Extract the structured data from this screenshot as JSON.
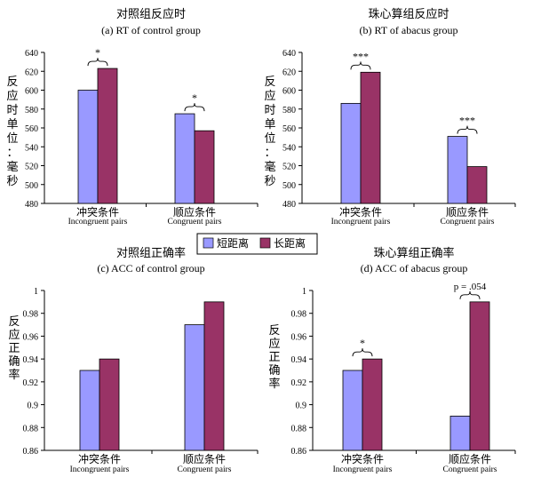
{
  "legend": {
    "items": [
      {
        "label": "短距离",
        "color": "#9999ff"
      },
      {
        "label": "长距离",
        "color": "#993366"
      }
    ]
  },
  "chart_data": [
    {
      "type": "bar",
      "title": "对照组反应时",
      "subtitle": "(a) RT of control group",
      "ylabel": "反应时单位：毫秒",
      "ylim": [
        480,
        640
      ],
      "yticks": [
        480,
        500,
        520,
        540,
        560,
        580,
        600,
        620,
        640
      ],
      "categories": [
        "冲突条件",
        "顺应条件"
      ],
      "category_sublabels": [
        "Incongruent pairs",
        "Congruent pairs"
      ],
      "series": [
        {
          "name": "短距离",
          "values": [
            600,
            575
          ]
        },
        {
          "name": "长距离",
          "values": [
            623,
            557
          ]
        }
      ],
      "annotations": [
        "*",
        "*"
      ]
    },
    {
      "type": "bar",
      "title": "珠心算组反应时",
      "subtitle": "(b) RT of abacus group",
      "ylabel": "反应时单位：毫秒",
      "ylim": [
        480,
        640
      ],
      "yticks": [
        480,
        500,
        520,
        540,
        560,
        580,
        600,
        620,
        640
      ],
      "categories": [
        "冲突条件",
        "顺应条件"
      ],
      "category_sublabels": [
        "Incongruent pairs",
        "Congruent pairs"
      ],
      "series": [
        {
          "name": "短距离",
          "values": [
            586,
            551
          ]
        },
        {
          "name": "长距离",
          "values": [
            619,
            519
          ]
        }
      ],
      "annotations": [
        "***",
        "***"
      ]
    },
    {
      "type": "bar",
      "title": "对照组正确率",
      "subtitle": "(c) ACC of control group",
      "ylabel": "反应正确率",
      "ylim": [
        0.86,
        1
      ],
      "yticks": [
        0.86,
        0.88,
        0.9,
        0.92,
        0.94,
        0.96,
        0.98,
        1
      ],
      "categories": [
        "冲突条件",
        "顺应条件"
      ],
      "category_sublabels": [
        "Incongruent pairs",
        "Congruent pairs"
      ],
      "series": [
        {
          "name": "短距离",
          "values": [
            0.93,
            0.97
          ]
        },
        {
          "name": "长距离",
          "values": [
            0.94,
            0.99
          ]
        }
      ],
      "annotations": [
        "",
        ""
      ]
    },
    {
      "type": "bar",
      "title": "珠心算组正确率",
      "subtitle": "(d) ACC of abacus group",
      "ylabel": "反应正确率",
      "ylim": [
        0.86,
        1
      ],
      "yticks": [
        0.86,
        0.88,
        0.9,
        0.92,
        0.94,
        0.96,
        0.98,
        1
      ],
      "categories": [
        "冲突条件",
        "顺应条件"
      ],
      "category_sublabels": [
        "Incongruent pairs",
        "Congruent pairs"
      ],
      "series": [
        {
          "name": "短距离",
          "values": [
            0.93,
            0.89
          ]
        },
        {
          "name": "长距离",
          "values": [
            0.94,
            0.99
          ]
        }
      ],
      "series_values_note": "",
      "annotations": [
        "*",
        "p = .054"
      ]
    }
  ]
}
